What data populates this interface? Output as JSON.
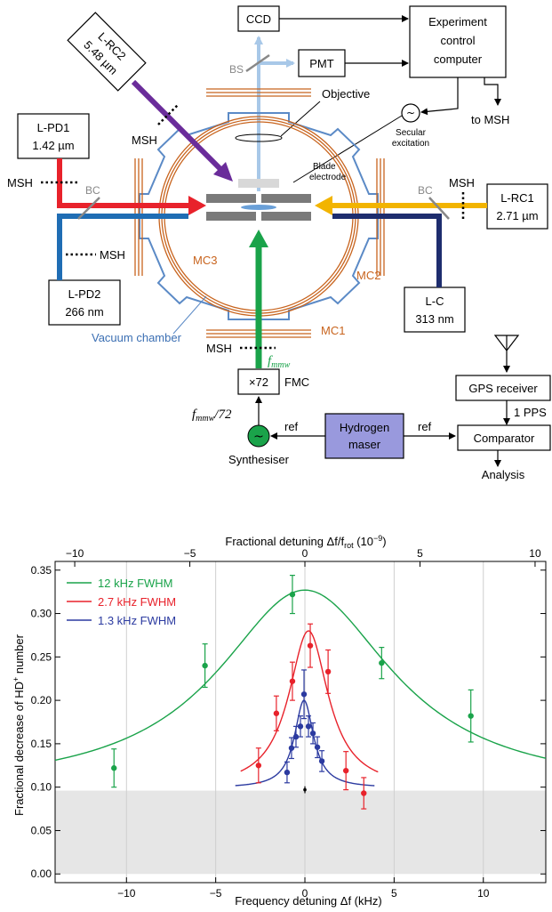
{
  "diagram": {
    "ccd": "CCD",
    "pmt": "PMT",
    "bs": "BS",
    "experiment_control": [
      "Experiment",
      "control",
      "computer"
    ],
    "to_msh": "to MSH",
    "objective": "Objective",
    "secular": [
      "Secular",
      "excitation"
    ],
    "blade": [
      "Blade",
      "electrode"
    ],
    "lrc2": [
      "L-RC2",
      "5.48 µm"
    ],
    "lpd1": [
      "L-PD1",
      "1.42 µm"
    ],
    "lpd2": [
      "L-PD2",
      "266 nm"
    ],
    "lrc1": [
      "L-RC1",
      "2.71 µm"
    ],
    "lc": [
      "L-C",
      "313 nm"
    ],
    "msh": "MSH",
    "bc": "BC",
    "mc1": "MC1",
    "mc2": "MC2",
    "mc3": "MC3",
    "vacuum": "Vacuum chamber",
    "fmmw": "f",
    "fmmw_sub": "mmw",
    "x72": "×72",
    "fmc": "FMC",
    "fmmw72_sub": "mmw",
    "fmmw72_tail": "/72",
    "synth": "Synthesiser",
    "ref": "ref",
    "maser": [
      "Hydrogen",
      "maser"
    ],
    "gps": "GPS receiver",
    "pps": "1 PPS",
    "comparator": "Comparator",
    "analysis": "Analysis",
    "colors": {
      "red": "#e8222b",
      "blue": "#1f6db4",
      "navy": "#1e2d6e",
      "yellow": "#f2b400",
      "green": "#1aa34a",
      "purple": "#6a2c9a",
      "orange": "#c8641e",
      "lightblue": "#a8c8e8",
      "chamber": "#5b8ac6",
      "maser": "#9999dd"
    }
  },
  "chart_data": {
    "type": "scatter",
    "top_axis_label": "Fractional detuning Δf/f",
    "top_axis_label_sub": "rot",
    "top_axis_label_tail": " (10",
    "top_axis_label_exp": "−9",
    "top_axis_label_end": ")",
    "xlabel": "Frequency detuning Δf (kHz)",
    "ylabel_pre": "Fractional decrease of HD",
    "ylabel_sup": "+",
    "ylabel_post": " number",
    "xlim": [
      -14,
      13.5
    ],
    "ylim": [
      -0.01,
      0.36
    ],
    "x_ticks": [
      "−10",
      "−5",
      "0",
      "5",
      "10"
    ],
    "x_tick_values": [
      -10,
      -5,
      0,
      5,
      10
    ],
    "top_ticks": [
      "−10",
      "−5",
      "0",
      "5",
      "10"
    ],
    "top_tick_values": [
      -10,
      -5,
      0,
      5,
      10
    ],
    "y_ticks": [
      "0.00",
      "0.05",
      "0.10",
      "0.15",
      "0.20",
      "0.25",
      "0.30",
      "0.35"
    ],
    "y_tick_values": [
      0,
      0.05,
      0.1,
      0.15,
      0.2,
      0.25,
      0.3,
      0.35
    ],
    "grid": "vertical",
    "background_band": [
      0,
      0.096
    ],
    "legend_position": "top-left",
    "series": [
      {
        "name": "12 kHz FWHM",
        "color": "#1aa34a",
        "fit": {
          "center": 0,
          "fwhm": 12,
          "baseline": 0.095,
          "amplitude": 0.232,
          "range": [
            -14,
            13.5
          ]
        },
        "points": [
          {
            "x": -10.7,
            "y": 0.122,
            "err": 0.022
          },
          {
            "x": -5.6,
            "y": 0.24,
            "err": 0.025
          },
          {
            "x": -0.7,
            "y": 0.322,
            "err": 0.022
          },
          {
            "x": 4.3,
            "y": 0.243,
            "err": 0.018
          },
          {
            "x": 9.3,
            "y": 0.182,
            "err": 0.03
          }
        ]
      },
      {
        "name": "2.7 kHz FWHM",
        "color": "#e8222b",
        "fit": {
          "center": 0.2,
          "fwhm": 2.7,
          "baseline": 0.098,
          "amplitude": 0.182,
          "range": [
            -3.6,
            4.1
          ]
        },
        "points": [
          {
            "x": -2.6,
            "y": 0.125,
            "err": 0.02
          },
          {
            "x": -1.6,
            "y": 0.185,
            "err": 0.02
          },
          {
            "x": -0.7,
            "y": 0.222,
            "err": 0.022
          },
          {
            "x": 0.3,
            "y": 0.263,
            "err": 0.025
          },
          {
            "x": 1.3,
            "y": 0.233,
            "err": 0.025
          },
          {
            "x": 2.3,
            "y": 0.119,
            "err": 0.022
          },
          {
            "x": 3.3,
            "y": 0.093,
            "err": 0.018
          }
        ]
      },
      {
        "name": "1.3 kHz FWHM",
        "color": "#2b3aa0",
        "fit": {
          "center": -0.05,
          "fwhm": 1.3,
          "baseline": 0.099,
          "amplitude": 0.101,
          "range": [
            -3.9,
            3.9
          ]
        },
        "points": [
          {
            "x": -1.0,
            "y": 0.117,
            "err": 0.012
          },
          {
            "x": -0.75,
            "y": 0.145,
            "err": 0.012
          },
          {
            "x": -0.5,
            "y": 0.158,
            "err": 0.012
          },
          {
            "x": -0.25,
            "y": 0.17,
            "err": 0.012
          },
          {
            "x": -0.05,
            "y": 0.207,
            "err": 0.028
          },
          {
            "x": 0.2,
            "y": 0.17,
            "err": 0.012
          },
          {
            "x": 0.45,
            "y": 0.162,
            "err": 0.012
          },
          {
            "x": 0.7,
            "y": 0.146,
            "err": 0.012
          },
          {
            "x": 0.95,
            "y": 0.13,
            "err": 0.012
          }
        ]
      }
    ],
    "reference_point": {
      "x": 0,
      "y": 0.097,
      "err": 0.004,
      "color": "#000000"
    }
  }
}
